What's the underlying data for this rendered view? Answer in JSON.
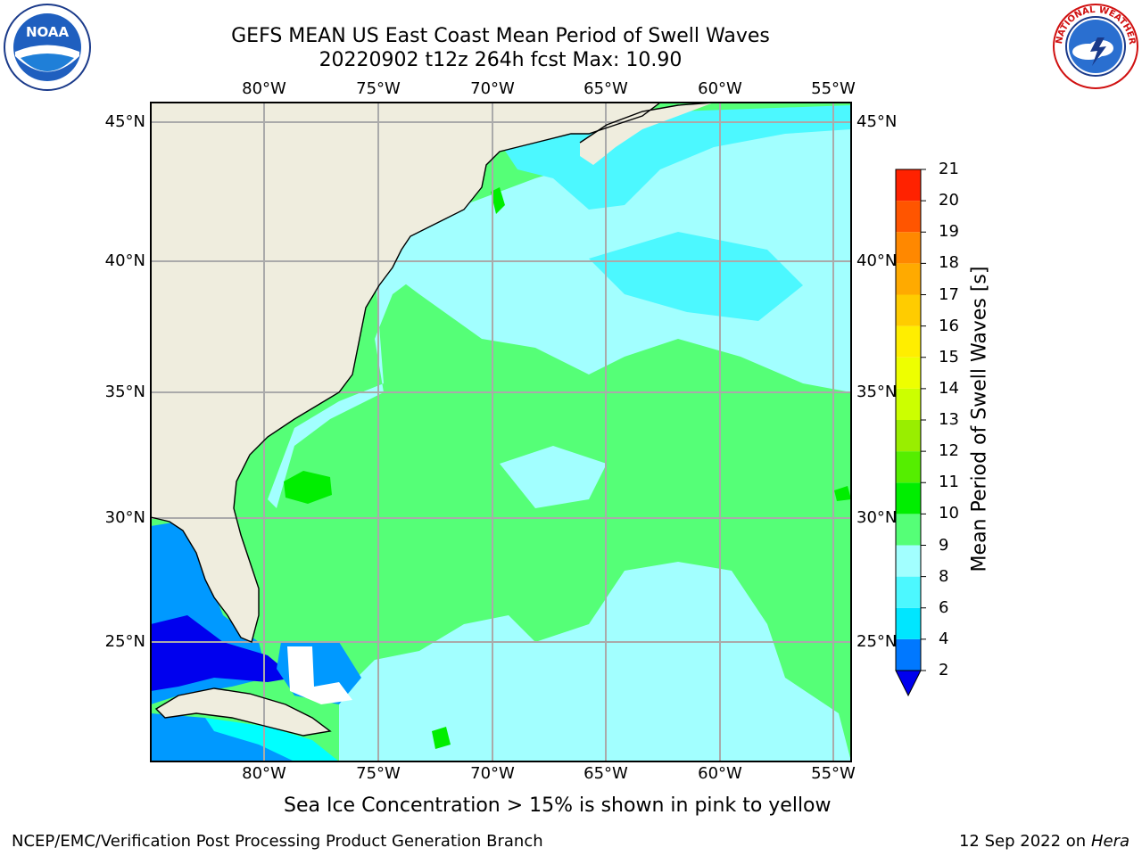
{
  "header": {
    "title_line1": "GEFS MEAN US East Coast Mean Period of Swell Waves",
    "title_line2": "20220902 t12z 264h fcst   Max: 10.90"
  },
  "map": {
    "lon_labels": [
      "80°W",
      "75°W",
      "70°W",
      "65°W",
      "60°W",
      "55°W"
    ],
    "lat_labels": [
      "45°N",
      "40°N",
      "35°N",
      "30°N",
      "25°N"
    ],
    "colors": {
      "land": "#efedde",
      "ocean_9_10": "#55ff77",
      "ocean_8_9": "#a2ffff",
      "ocean_6_8": "#4cf8ff",
      "ocean_4_6": "#00ffff",
      "ocean_2_4": "#0099ff",
      "ocean_lt2": "#0000ee",
      "ocean_10_11": "#00ee00",
      "grid": "#aaaaaa"
    }
  },
  "colorbar": {
    "label": "Mean Period of Swell Waves [s]",
    "ticks": [
      "2",
      "4",
      "6",
      "8",
      "9",
      "10",
      "11",
      "12",
      "13",
      "14",
      "15",
      "16",
      "17",
      "18",
      "19",
      "20",
      "21"
    ],
    "colors": [
      "#0078ff",
      "#00e6ff",
      "#4cf8ff",
      "#a2ffff",
      "#55ff77",
      "#00ee00",
      "#55ee00",
      "#99ee00",
      "#ccff00",
      "#eeff00",
      "#ffee00",
      "#ffcc00",
      "#ffaa00",
      "#ff8800",
      "#ff5500",
      "#ff2200"
    ],
    "under_color": "#0000ee"
  },
  "footer": {
    "note": "Sea Ice Concentration > 15% is shown in pink to yellow",
    "left": "NCEP/EMC/Verification Post Processing Product Generation Branch",
    "right_date": "12 Sep 2022 on",
    "right_host": "Hera"
  },
  "logos": {
    "noaa_text": "NOAA",
    "nws_text": "NATIONAL WEATHER SERVICE"
  }
}
